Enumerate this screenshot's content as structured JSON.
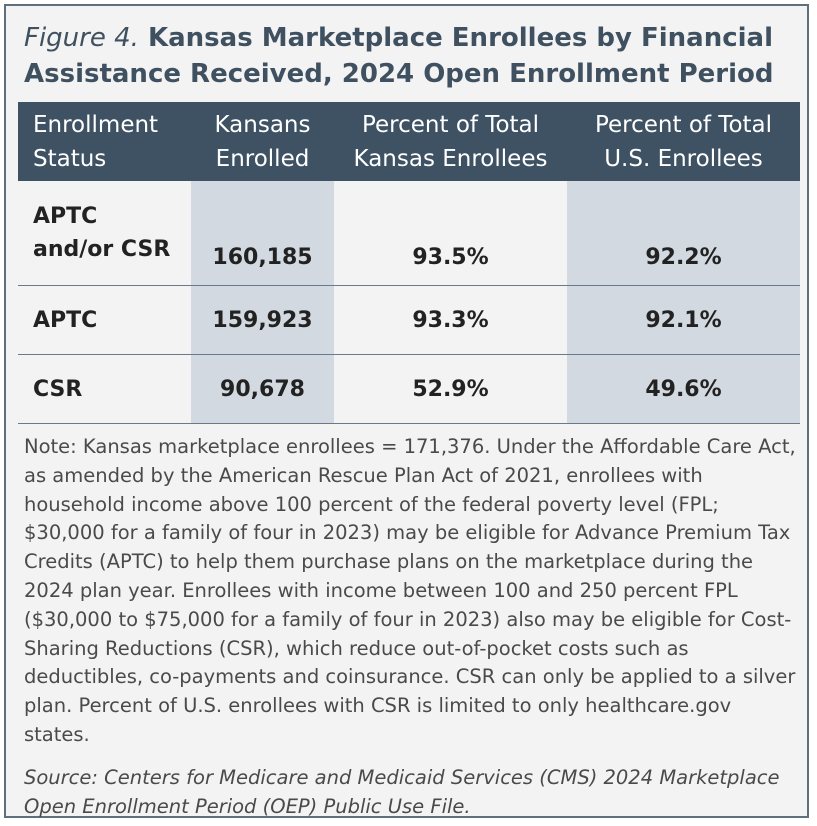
{
  "figure": {
    "label": "Figure 4.",
    "title": "Kansas Marketplace Enrollees by Financial Assistance Received, 2024 Open Enrollment Period"
  },
  "table": {
    "headers": [
      [
        "Enrollment",
        "Status"
      ],
      [
        "Kansans",
        "Enrolled"
      ],
      [
        "Percent of Total",
        "Kansas Enrollees"
      ],
      [
        "Percent of Total",
        "U.S. Enrollees"
      ]
    ],
    "rows": [
      {
        "status": [
          "APTC",
          "and/or CSR"
        ],
        "enrolled": "160,185",
        "pct_kansas": "93.5%",
        "pct_us": "92.2%"
      },
      {
        "status": [
          "APTC"
        ],
        "enrolled": "159,923",
        "pct_kansas": "93.3%",
        "pct_us": "92.1%"
      },
      {
        "status": [
          "CSR"
        ],
        "enrolled": "90,678",
        "pct_kansas": "52.9%",
        "pct_us": "49.6%"
      }
    ]
  },
  "note": "Note: Kansas marketplace enrollees = 171,376. Under the Affordable Care Act, as amended by the American Rescue Plan Act of 2021, enrollees with household income above 100 percent of the federal poverty level (FPL; $30,000 for a family of four in 2023) may be eligible for Advance Premium Tax Credits (APTC) to help them purchase plans on the marketplace during the 2024 plan year. Enrollees with income between 100 and 250 percent FPL ($30,000 to $75,000 for a family of four in 2023) also may be eligible for Cost-Sharing Reductions (CSR), which reduce out-of-pocket costs such as deductibles, co-payments and coinsurance. CSR can only be applied to a silver plan. Percent of U.S. enrollees with CSR is limited to only healthcare.gov states.",
  "source": "Source: Centers for Medicare and Medicaid Services (CMS) 2024 Marketplace Open Enrollment Period (OEP) Public Use File.",
  "colors": {
    "header_bg": "#3e5264",
    "shade": "#d3d9e0",
    "title": "#3f5060",
    "card_bg": "#f3f3f3",
    "border": "#5f6f7c"
  },
  "chart_data": {
    "type": "table",
    "title": "Kansas Marketplace Enrollees by Financial Assistance Received, 2024 Open Enrollment Period",
    "columns": [
      "Enrollment Status",
      "Kansans Enrolled",
      "Percent of Total Kansas Enrollees",
      "Percent of Total U.S. Enrollees"
    ],
    "rows": [
      [
        "APTC and/or CSR",
        160185,
        93.5,
        92.2
      ],
      [
        "APTC",
        159923,
        93.3,
        92.1
      ],
      [
        "CSR",
        90678,
        52.9,
        49.6
      ]
    ]
  }
}
